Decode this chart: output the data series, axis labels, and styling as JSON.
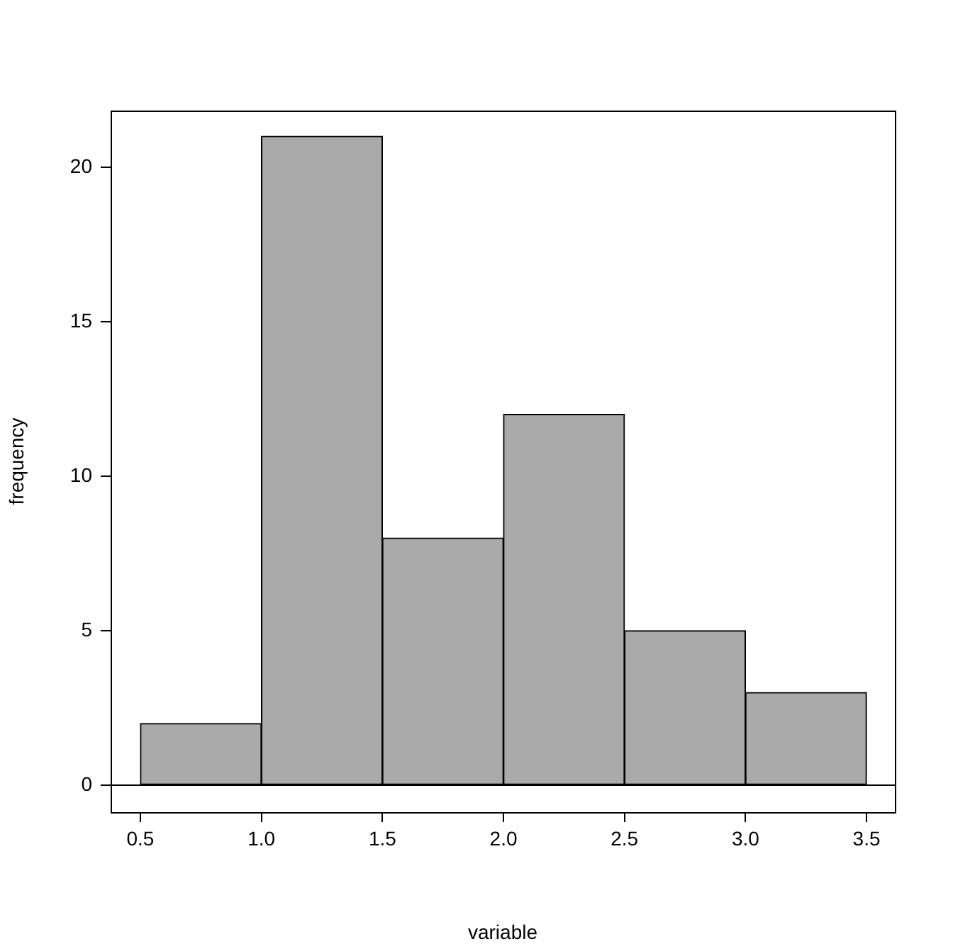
{
  "chart_data": {
    "type": "histogram",
    "xlabel": "variable",
    "ylabel": "frequency",
    "bins": [
      0.5,
      1.0,
      1.5,
      2.0,
      2.5,
      3.0,
      3.5
    ],
    "values": [
      2,
      21,
      8,
      12,
      5,
      3
    ],
    "color": "#aaaaaa",
    "xlim": [
      0.377,
      3.617
    ],
    "xticks": [
      0.5,
      {
        "value": 1,
        "label": "1.0"
      },
      1.5,
      {
        "value": 2,
        "label": "2.0"
      },
      2.5,
      {
        "value": 3,
        "label": "3.0"
      },
      3.5
    ],
    "ylim": [
      -0.87,
      21.83
    ],
    "yticks": [
      0,
      5,
      10,
      15,
      20
    ],
    "ref_lines": [
      {
        "axis": "y",
        "value": 0,
        "color": "#000000"
      }
    ],
    "grid": false,
    "legend": false
  }
}
